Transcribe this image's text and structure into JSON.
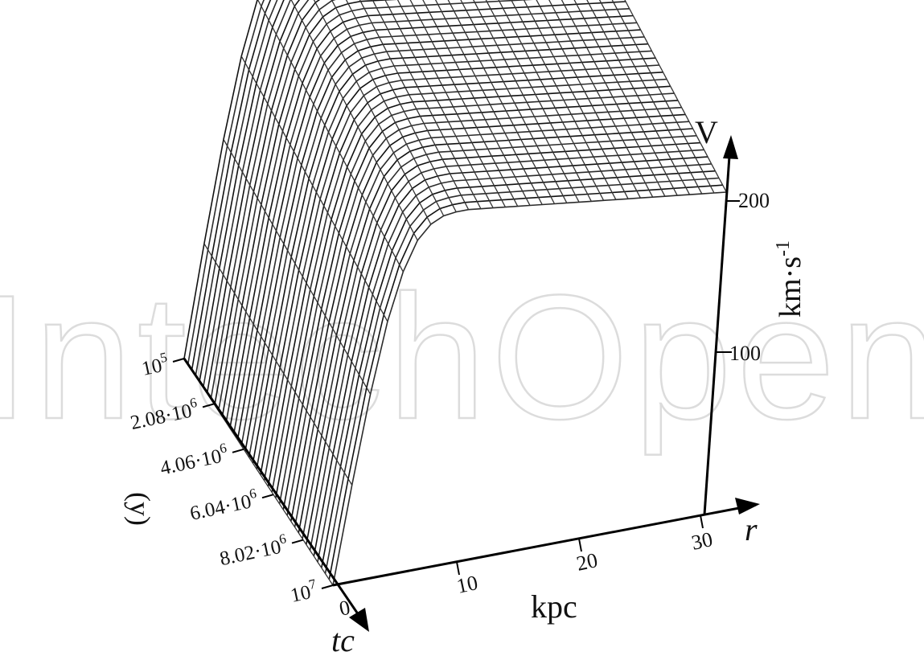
{
  "watermark": {
    "text": "IntechOpen"
  },
  "chart_data": {
    "type": "surface",
    "title": "",
    "axes": {
      "v": {
        "label": "V",
        "unit_label": "km·s",
        "unit_exp": "-1",
        "ticks": [
          "100",
          "200"
        ],
        "range": [
          0,
          230
        ]
      },
      "r": {
        "label": "r",
        "unit_label": "kpc",
        "ticks": [
          "0",
          "10",
          "20",
          "30"
        ],
        "range": [
          0,
          30
        ]
      },
      "t": {
        "label": "tc",
        "unit_label": "(y)",
        "ticks": [
          {
            "mantissa": "10",
            "exp": "5"
          },
          {
            "mantissa": "2.08·10",
            "exp": "6"
          },
          {
            "mantissa": "4.06·10",
            "exp": "6"
          },
          {
            "mantissa": "6.04·10",
            "exp": "6"
          },
          {
            "mantissa": "8.02·10",
            "exp": "6"
          },
          {
            "mantissa": "10",
            "exp": "7"
          }
        ],
        "values": [
          100000,
          2080000,
          4060000,
          6040000,
          8020000,
          10000000
        ],
        "range": [
          100000,
          10000000
        ]
      }
    },
    "surface": {
      "r_values": [
        0,
        1,
        2,
        3,
        4,
        5,
        6,
        7,
        8,
        9,
        10,
        11,
        12,
        13,
        14,
        15,
        16,
        17,
        18,
        19,
        20,
        21,
        22,
        23,
        24,
        25,
        26,
        27,
        28,
        29,
        30
      ],
      "v_profile": [
        0,
        64,
        122,
        168,
        199,
        218,
        227,
        231,
        232,
        232,
        231,
        230,
        229,
        228,
        227,
        226,
        225,
        224,
        223,
        222,
        221,
        220,
        219,
        218,
        217,
        216,
        215,
        214,
        213,
        212,
        211
      ],
      "t_amplitude_start": 1.07,
      "t_amplitude_end": 0.93
    }
  }
}
